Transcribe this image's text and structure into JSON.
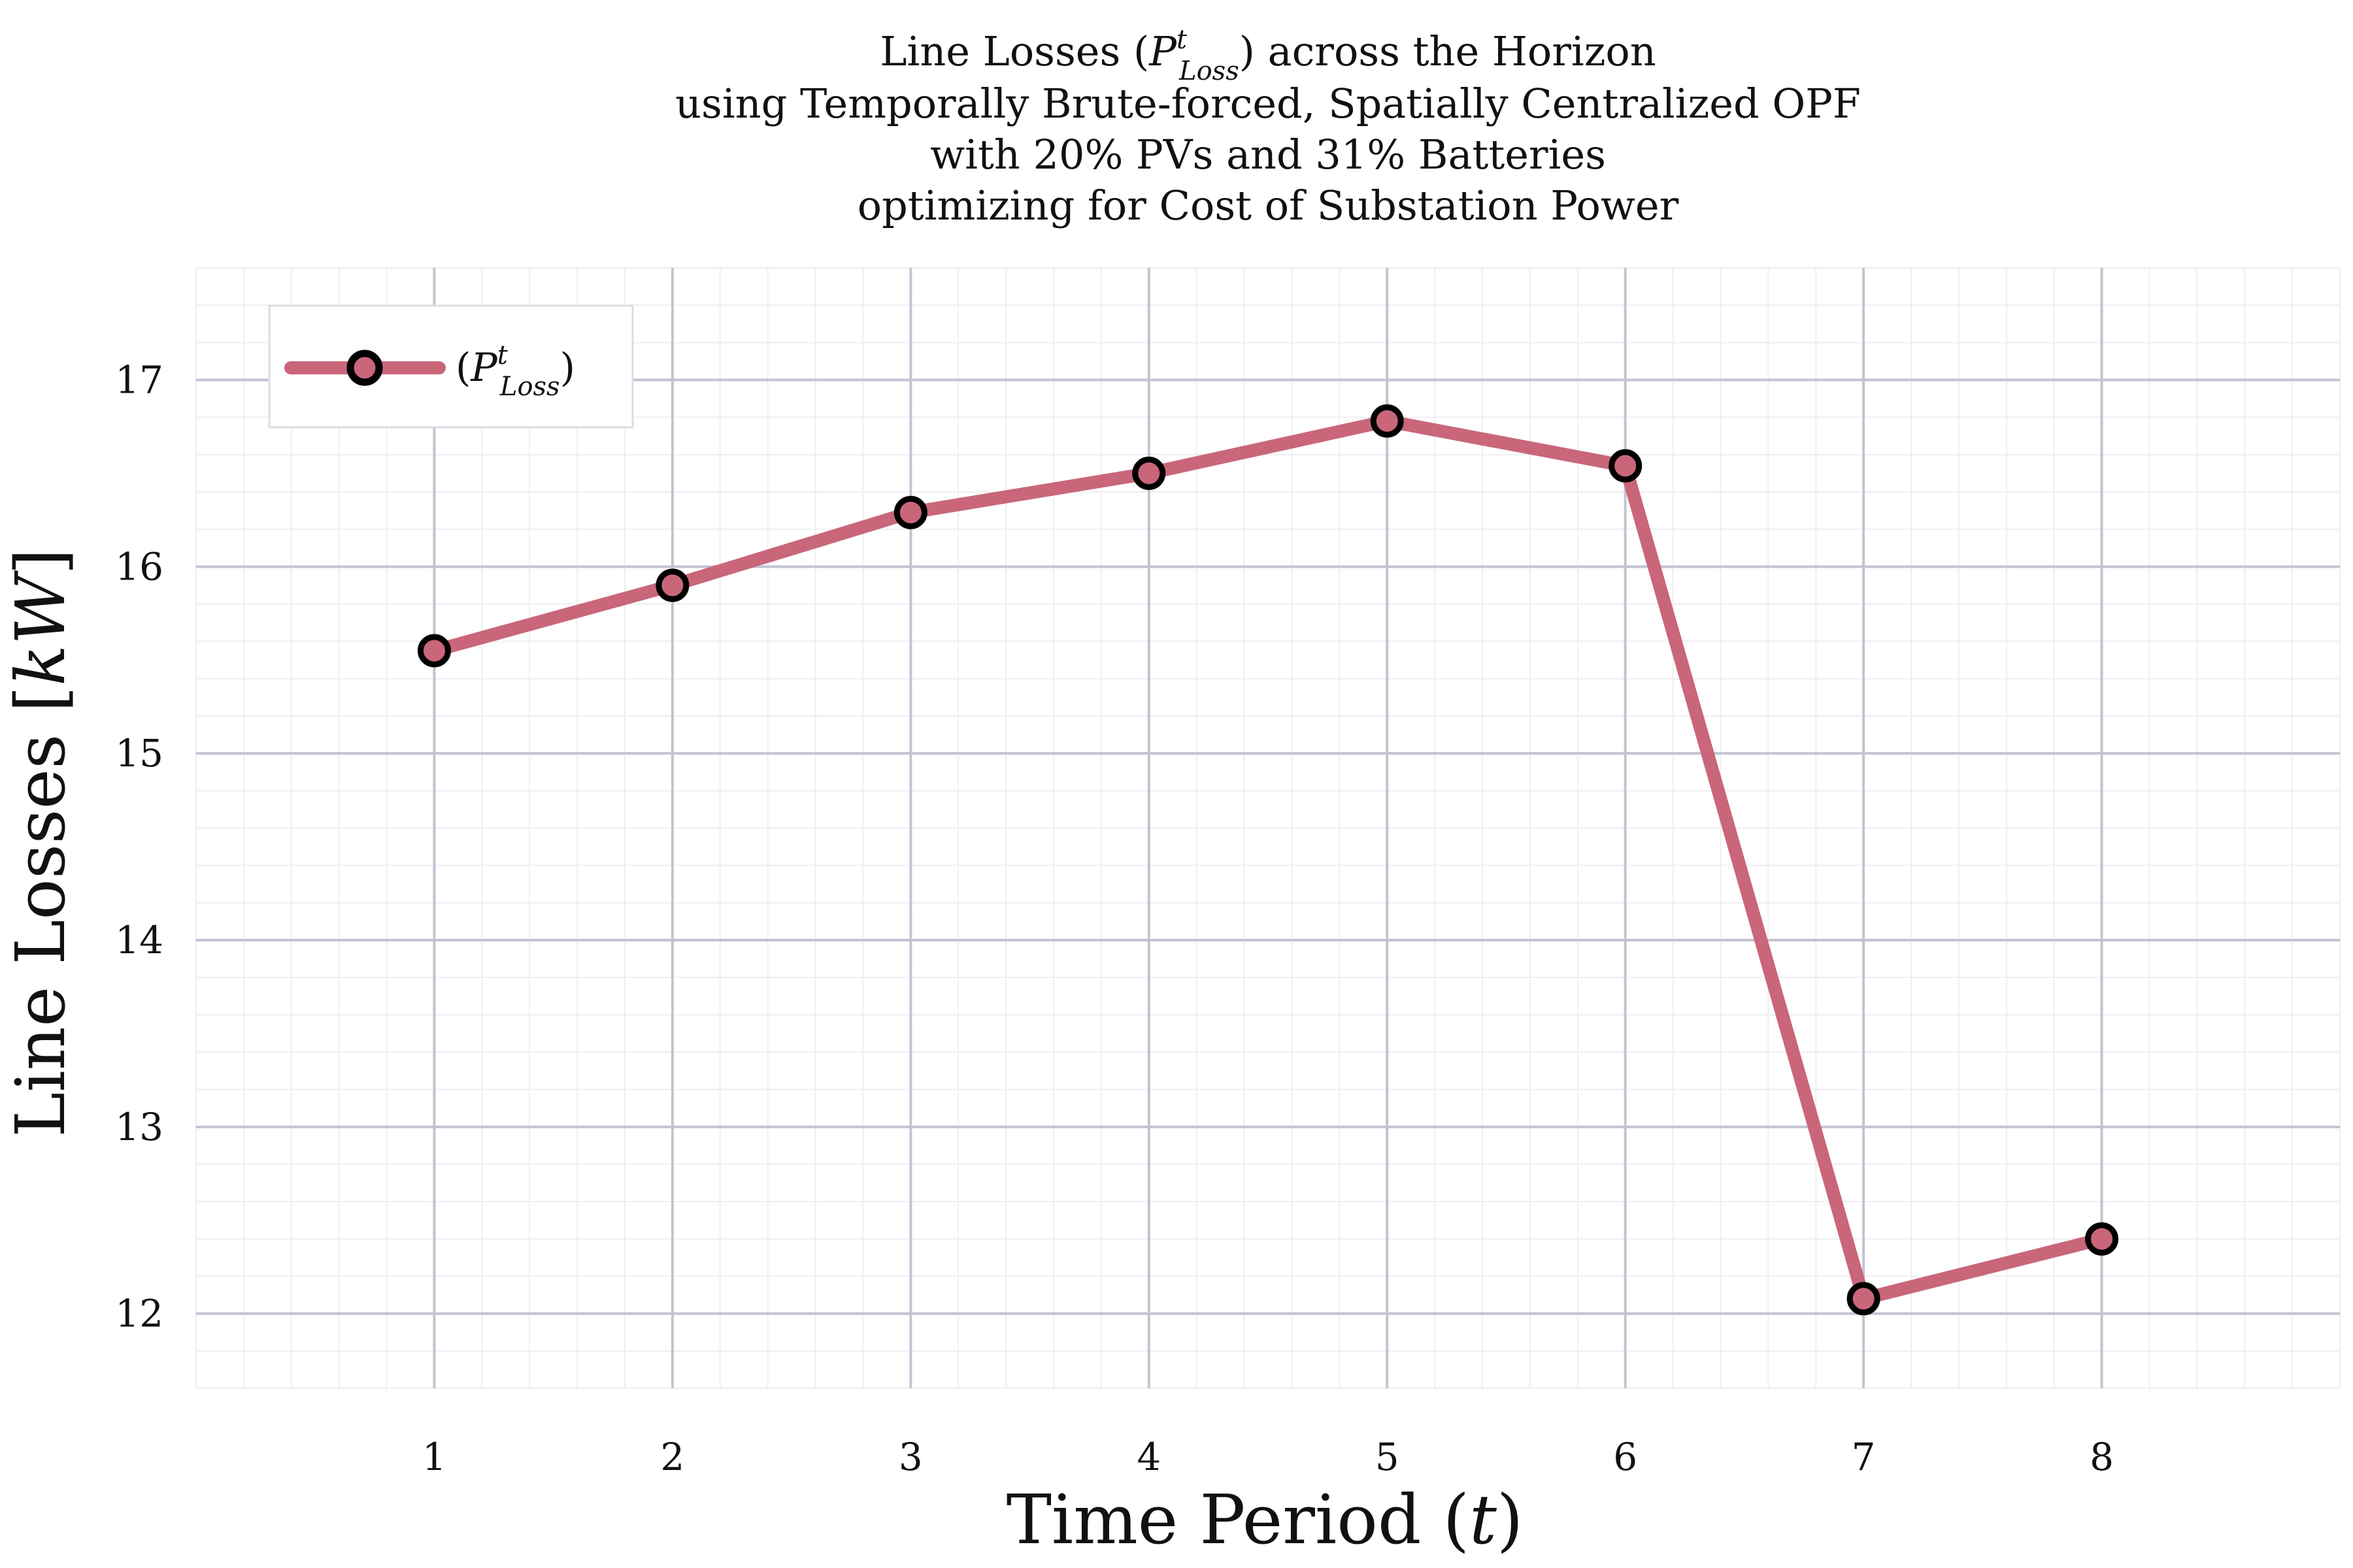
{
  "chart_data": {
    "type": "line",
    "title": {
      "line1_prefix": "Line Losses (",
      "line1_symbol": "P",
      "line1_sup": "t",
      "line1_sub": "Loss",
      "line1_suffix": ") across the Horizon",
      "line2": "using Temporally Brute-forced, Spatially Centralized OPF",
      "line3": "with 20% PVs and 31% Batteries",
      "line4": "optimizing for Cost of Substation Power"
    },
    "xlabel": {
      "prefix": "Time Period (",
      "symbol": "t",
      "suffix": ")"
    },
    "ylabel": {
      "prefix": "Line Losses [",
      "symbol": "kW",
      "suffix": "]"
    },
    "x": [
      1,
      2,
      3,
      4,
      5,
      6,
      7,
      8
    ],
    "series": [
      {
        "name": {
          "prefix": "(",
          "symbol": "P",
          "sup": "t",
          "sub": "Loss",
          "suffix": ")"
        },
        "values": [
          15.55,
          15.9,
          16.29,
          16.5,
          16.78,
          16.54,
          12.08,
          12.4
        ],
        "color": "#c9667a",
        "marker_edge": "#000000"
      }
    ],
    "xlim": [
      0.0,
      9.0
    ],
    "ylim": [
      11.6,
      17.6
    ],
    "xticks": [
      "1",
      "2",
      "3",
      "4",
      "5",
      "6",
      "7",
      "8"
    ],
    "yticks": [
      "12",
      "13",
      "14",
      "15",
      "16",
      "17"
    ],
    "grid": true,
    "minor_grid": true,
    "legend_position": "top-left",
    "colors": {
      "major_grid": "#c3c3d2",
      "minor_grid": "#eeeef3",
      "text": "#111111"
    }
  }
}
